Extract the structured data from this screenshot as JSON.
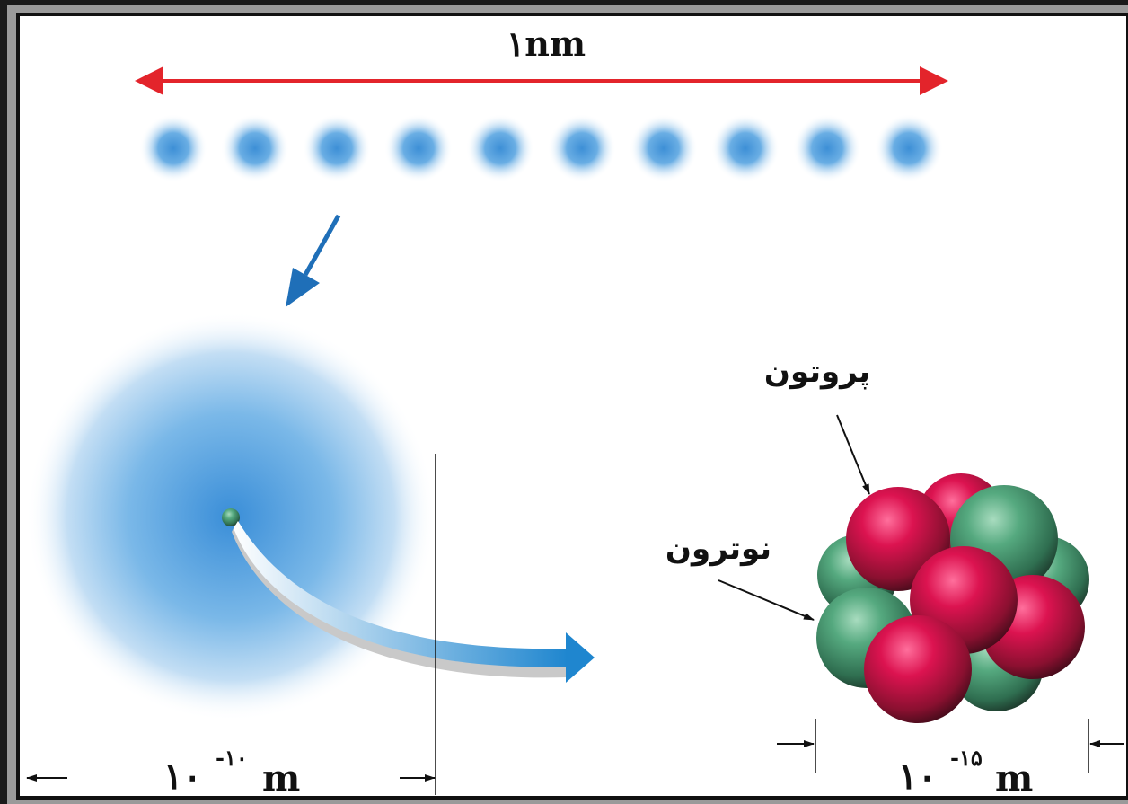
{
  "scale": {
    "label": "۱nm"
  },
  "labels": {
    "proton": "پروتون",
    "neutron": "نوترون"
  },
  "atom_size": {
    "base": "۱۰",
    "exponent": "-۱۰",
    "unit": "m"
  },
  "nucleus_size": {
    "base": "۱۰",
    "exponent": "-۱۵",
    "unit": "m"
  }
}
